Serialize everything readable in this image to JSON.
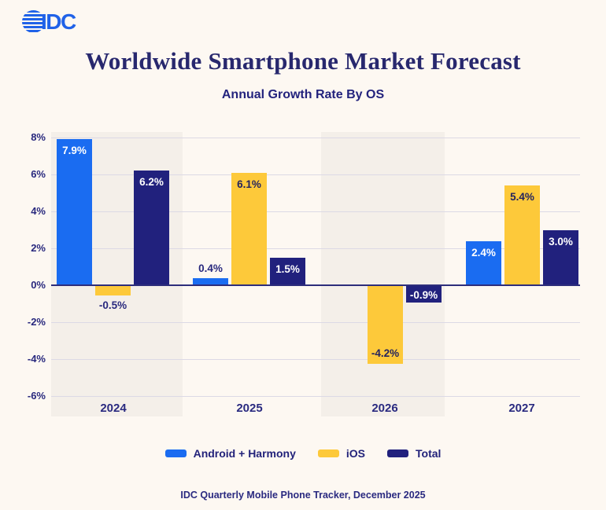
{
  "logo": {
    "text": "IDC",
    "color": "#2062e8"
  },
  "header": {
    "title": "Worldwide Smartphone Market Forecast",
    "subtitle": "Annual Growth Rate By OS"
  },
  "chart_data": {
    "type": "bar",
    "title": "Worldwide Smartphone Market Forecast",
    "subtitle": "Annual Growth Rate By OS",
    "unit": "%",
    "categories": [
      "2024",
      "2025",
      "2026",
      "2027"
    ],
    "y_axis": {
      "min": -6,
      "max": 8,
      "step": 2,
      "tick_labels": [
        "8%",
        "6%",
        "4%",
        "2%",
        "0%",
        "-2%",
        "-4%",
        "-6%"
      ]
    },
    "grid": true,
    "legend_position": "bottom",
    "background_bands": {
      "color": "#f4efe9",
      "categories": [
        "2024",
        "2026"
      ]
    },
    "series": [
      {
        "name": "Android + Harmony",
        "color": "#1a6cf1",
        "values": [
          7.9,
          0.4,
          null,
          2.4
        ]
      },
      {
        "name": "iOS",
        "color": "#fdc93a",
        "values": [
          -0.5,
          6.1,
          -4.2,
          5.4
        ]
      },
      {
        "name": "Total",
        "color": "#21217d",
        "values": [
          6.2,
          1.5,
          -0.9,
          3.0
        ]
      }
    ],
    "bar_labels": [
      [
        {
          "text": "7.9%",
          "pos": "inside-top",
          "style": "light"
        },
        {
          "text": "0.4%",
          "pos": "above",
          "style": "dark"
        },
        null,
        {
          "text": "2.4%",
          "pos": "inside-top",
          "style": "light"
        }
      ],
      [
        {
          "text": "-0.5%",
          "pos": "below",
          "style": "dark"
        },
        {
          "text": "6.1%",
          "pos": "inside-top",
          "style": "dark"
        },
        {
          "text": "-4.2%",
          "pos": "inside-bottom",
          "style": "dark"
        },
        {
          "text": "5.4%",
          "pos": "inside-top",
          "style": "dark"
        }
      ],
      [
        {
          "text": "6.2%",
          "pos": "inside-top",
          "style": "light"
        },
        {
          "text": "1.5%",
          "pos": "inside-top",
          "style": "light"
        },
        {
          "text": "-0.9%",
          "pos": "inside-top",
          "style": "light"
        },
        {
          "text": "3.0%",
          "pos": "inside-top",
          "style": "light"
        }
      ]
    ]
  },
  "footer": {
    "source": "IDC Quarterly Mobile Phone Tracker, December 2025"
  }
}
